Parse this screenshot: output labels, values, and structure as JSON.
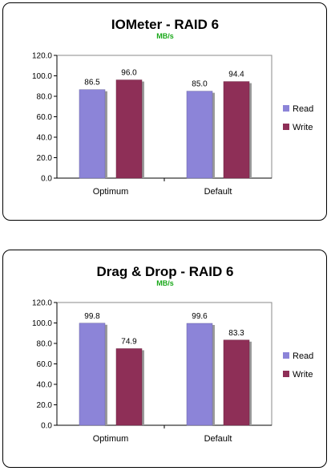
{
  "chart_data": [
    {
      "type": "bar",
      "title": "IOMeter - RAID 6",
      "subtitle": "MB/s",
      "categories": [
        "Optimum",
        "Default"
      ],
      "series": [
        {
          "name": "Read",
          "values": [
            86.5,
            85.0
          ],
          "labels": [
            "86.5",
            "85.0"
          ],
          "color": "#8c84d8"
        },
        {
          "name": "Write",
          "values": [
            96.0,
            94.4
          ],
          "labels": [
            "96.0",
            "94.4"
          ],
          "color": "#8e2f57"
        }
      ],
      "ylim": [
        0,
        120
      ],
      "yticks": [
        "0.0",
        "20.0",
        "40.0",
        "60.0",
        "80.0",
        "100.0",
        "120.0"
      ],
      "legend": "right",
      "grid": false
    },
    {
      "type": "bar",
      "title": "Drag & Drop - RAID 6",
      "subtitle": "MB/s",
      "categories": [
        "Optimum",
        "Default"
      ],
      "series": [
        {
          "name": "Read",
          "values": [
            99.8,
            99.6
          ],
          "labels": [
            "99.8",
            "99.6"
          ],
          "color": "#8c84d8"
        },
        {
          "name": "Write",
          "values": [
            74.9,
            83.3
          ],
          "labels": [
            "74.9",
            "83.3"
          ],
          "color": "#8e2f57"
        }
      ],
      "ylim": [
        0,
        120
      ],
      "yticks": [
        "0.0",
        "20.0",
        "40.0",
        "60.0",
        "80.0",
        "100.0",
        "120.0"
      ],
      "legend": "right",
      "grid": false
    }
  ]
}
